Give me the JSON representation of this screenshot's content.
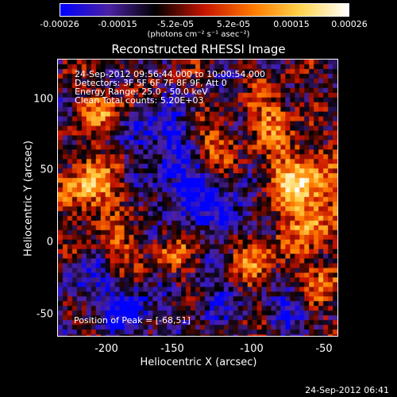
{
  "colorbar": {
    "ticks": [
      "-0.00026",
      "-0.00015",
      "-5.2e-05",
      "5.2e-05",
      "0.00015",
      "0.00026"
    ],
    "units": "(photons cm⁻² s⁻¹ asec⁻²)",
    "colors": [
      "#0000ff",
      "#4b21a3",
      "#000000",
      "#c81400",
      "#ff7a00",
      "#ffd34a",
      "#ffffff"
    ]
  },
  "title": "Reconstructed RHESSI Image",
  "info": {
    "time_range": "24-Sep-2012 09:56:44.000 to 10:00:54.000",
    "detectors": "Detectors: 3F 5F 6F 7F 8F 9F, Att 0",
    "energy": "Energy Range: 25.0 - 50.0 keV",
    "algorithm": "Clean     Total counts: 5.20E+03"
  },
  "peak": "Position of Peak = [-68,51]",
  "axes": {
    "xlabel": "Heliocentric X (arcsec)",
    "ylabel": "Heliocentric Y (arcsec)",
    "xticks": [
      "-200",
      "-150",
      "-100",
      "-50"
    ],
    "yticks": [
      "100",
      "50",
      "0",
      "-50"
    ]
  },
  "timestamp": "24-Sep-2012 06:41"
}
